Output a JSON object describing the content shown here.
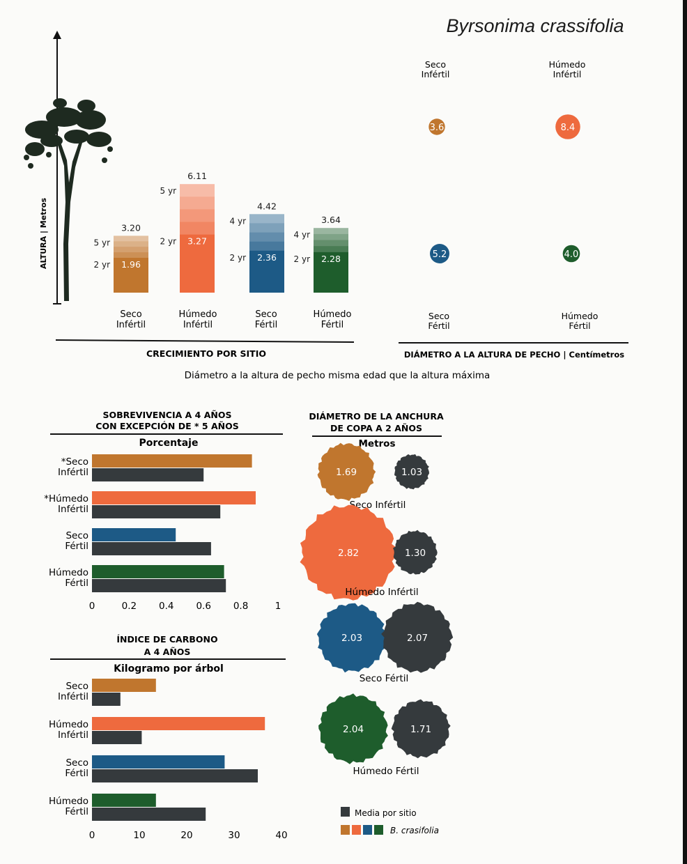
{
  "page": {
    "species_title": "Byrsonima crassifolia"
  },
  "colors": {
    "seco_infertil": "#c0762e",
    "humedo_infertil": "#ee6a3e",
    "seco_fertil": "#1d5a86",
    "humedo_fertil": "#1e5d2c",
    "mean": "#353a3d",
    "tree": "#1e2a20"
  },
  "sites": [
    {
      "key": "seco_infertil",
      "line1": "Seco",
      "line2": "Infértil"
    },
    {
      "key": "humedo_infertil",
      "line1": "Húmedo",
      "line2": "Infértil"
    },
    {
      "key": "seco_fertil",
      "line1": "Seco",
      "line2": "Fértil"
    },
    {
      "key": "humedo_fertil",
      "line1": "Húmedo",
      "line2": "Fértil"
    }
  ],
  "growth": {
    "axis_label": "ALTURA | Metros",
    "section_label": "CRECIMIENTO POR SITIO"
  },
  "dbh": {
    "section_label": "DIÁMETRO A LA ALTURA DE PECHO | Centímetros"
  },
  "note": "Diámetro a la altura de pecho misma edad que la altura máxima",
  "survival": {
    "title_line1": "SOBREVIVENCIA A 4 AÑOS",
    "title_line2": "CON EXCEPCIÓN DE * 5 AÑOS",
    "subtitle": "Porcentaje",
    "site_labels": [
      [
        "*Seco",
        "Infértil"
      ],
      [
        "*Húmedo",
        "Infértil"
      ],
      [
        "Seco",
        "Fértil"
      ],
      [
        "Húmedo",
        "Fértil"
      ]
    ]
  },
  "carbon": {
    "title_line1": "ÍNDICE DE CARBONO",
    "title_line2": "A 4 AÑOS",
    "subtitle": "Kilogramo por árbol",
    "site_labels": [
      [
        "Seco",
        "Infértil"
      ],
      [
        "Húmedo",
        "Infértil"
      ],
      [
        "Seco",
        "Fértil"
      ],
      [
        "Húmedo",
        "Fértil"
      ]
    ]
  },
  "crown": {
    "title_line1": "DIÁMETRO DE LA ANCHURA",
    "title_line2": "DE COPA A 2 AÑOS",
    "subtitle": "Metros",
    "site_names": [
      "Seco Infértil",
      "Húmedo Infértil",
      "Seco Fértil",
      "Húmedo Fértil"
    ]
  },
  "legend": {
    "mean_label": "Media por sitio",
    "species_label": "B. crasifolia"
  },
  "chart_data": [
    {
      "id": "growth",
      "type": "bar",
      "categories": [
        "Seco Infértil",
        "Húmedo Infértil",
        "Seco Fértil",
        "Húmedo Fértil"
      ],
      "ylabel": "ALTURA | Metros",
      "xlabel": "CRECIMIENTO POR SITIO",
      "series": [
        {
          "name": "2 yr",
          "values": [
            1.96,
            3.27,
            2.36,
            2.28
          ]
        },
        {
          "name": "max",
          "values": [
            3.2,
            6.11,
            4.42,
            3.64
          ]
        }
      ],
      "max_age_labels": [
        "5 yr",
        "5 yr",
        "4 yr",
        "4 yr"
      ],
      "young_age_label": "2 yr",
      "ylim": [
        0,
        7
      ]
    },
    {
      "id": "dbh",
      "type": "scatter",
      "categories": [
        "Seco Infértil",
        "Húmedo Infértil",
        "Seco Fértil",
        "Húmedo Fértil"
      ],
      "values": [
        3.6,
        8.4,
        5.2,
        4.0
      ],
      "xlabel": "DIÁMETRO A LA ALTURA DE PECHO | Centímetros"
    },
    {
      "id": "survival",
      "type": "bar",
      "orientation": "horizontal",
      "categories": [
        "*Seco Infértil",
        "*Húmedo Infértil",
        "Seco Fértil",
        "Húmedo Fértil"
      ],
      "series": [
        {
          "name": "B. crasifolia",
          "values": [
            0.86,
            0.88,
            0.45,
            0.71
          ]
        },
        {
          "name": "Media por sitio",
          "values": [
            0.6,
            0.69,
            0.64,
            0.72
          ]
        }
      ],
      "xlim": [
        0,
        1
      ],
      "ticks": [
        "0",
        "0.2",
        "0.4",
        "0.6",
        "0.8",
        "1"
      ],
      "title": "SOBREVIVENCIA A 4 AÑOS CON EXCEPCIÓN DE * 5 AÑOS",
      "xlabel": "Porcentaje"
    },
    {
      "id": "carbon",
      "type": "bar",
      "orientation": "horizontal",
      "categories": [
        "Seco Infértil",
        "Húmedo Infértil",
        "Seco Fértil",
        "Húmedo Fértil"
      ],
      "series": [
        {
          "name": "B. crasifolia",
          "values": [
            13.5,
            36.5,
            28,
            13.5
          ]
        },
        {
          "name": "Media por sitio",
          "values": [
            6,
            10.5,
            35,
            24
          ]
        }
      ],
      "xlim": [
        0,
        40
      ],
      "ticks": [
        "0",
        "10",
        "20",
        "30",
        "40"
      ],
      "title": "ÍNDICE DE CARBONO A 4 AÑOS",
      "xlabel": "Kilogramo por árbol"
    },
    {
      "id": "crown",
      "type": "scatter",
      "categories": [
        "Seco Infértil",
        "Húmedo Infértil",
        "Seco Fértil",
        "Húmedo Fértil"
      ],
      "series": [
        {
          "name": "B. crasifolia",
          "values": [
            1.69,
            2.82,
            2.03,
            2.04
          ]
        },
        {
          "name": "Media por sitio",
          "values": [
            1.03,
            1.3,
            2.07,
            1.71
          ]
        }
      ],
      "title": "DIÁMETRO DE LA ANCHURA DE COPA A 2 AÑOS",
      "xlabel": "Metros"
    }
  ]
}
